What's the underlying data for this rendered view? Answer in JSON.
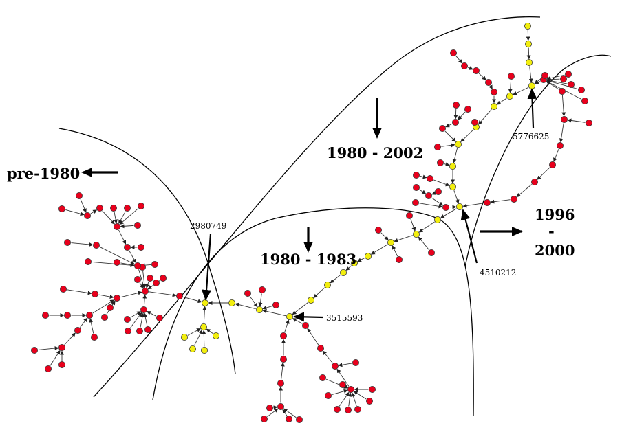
{
  "colors": {
    "red_node": "#e8001c",
    "yellow_node": "#f2ee0e",
    "node_stroke": "#3a3a3a",
    "line": "#000000"
  },
  "periods": {
    "pre1980": "pre-1980",
    "p1980_2002": "1980 - 2002",
    "p1980_1983": "1980 - 1983",
    "p1996_2000_top": "1996",
    "p1996_2000_dash": "-",
    "p1996_2000_bottom": "2000"
  },
  "patents": {
    "p1": "2980749",
    "p2": "3515593",
    "p3": "4510212",
    "p4": "5776625"
  }
}
